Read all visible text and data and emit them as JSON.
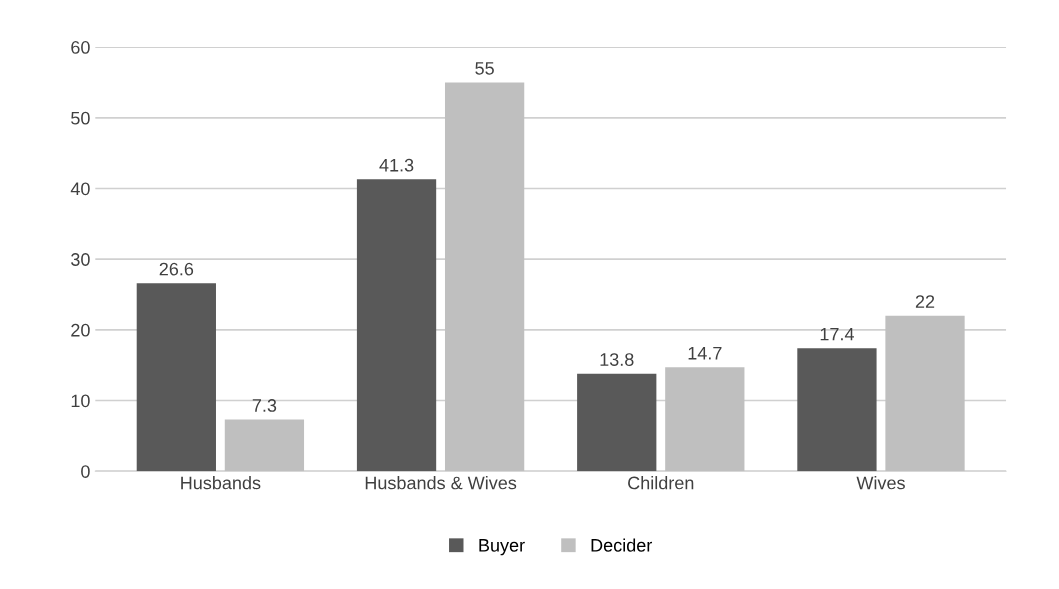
{
  "chart_data": {
    "type": "bar",
    "categories": [
      "Husbands",
      "Husbands & Wives",
      "Children",
      "Wives"
    ],
    "series": [
      {
        "name": "Buyer",
        "color": "#595959",
        "values": [
          26.6,
          41.3,
          13.8,
          17.4
        ]
      },
      {
        "name": "Decider",
        "color": "#bfbfbf",
        "values": [
          7.3,
          55,
          14.7,
          22
        ]
      }
    ],
    "ylim": [
      0,
      60
    ],
    "yticks": [
      0,
      10,
      20,
      30,
      40,
      50,
      60
    ],
    "grid": "y",
    "legend": "bottom",
    "data_labels": true
  }
}
